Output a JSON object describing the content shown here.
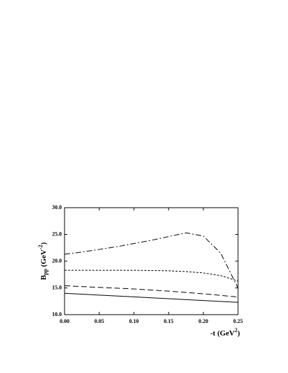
{
  "chart_data": {
    "type": "line",
    "xlabel": [
      "-t (GeV",
      "2",
      ")"
    ],
    "ylabel": [
      "B",
      "pp",
      " (GeV",
      "-2",
      ")"
    ],
    "x": [
      0,
      0.025,
      0.05,
      0.075,
      0.1,
      0.125,
      0.15,
      0.175,
      0.2,
      0.225,
      0.25
    ],
    "series": [
      {
        "dash": "solid",
        "color": "#000000",
        "values": [
          14.0,
          13.83,
          13.66,
          13.49,
          13.32,
          13.15,
          12.98,
          12.81,
          12.64,
          12.47,
          12.3
        ]
      },
      {
        "dash": "long-dash",
        "color": "#000000",
        "values": [
          15.4,
          15.25,
          15.1,
          14.95,
          14.8,
          14.6,
          14.4,
          14.15,
          13.9,
          13.6,
          13.3
        ]
      },
      {
        "dash": "short-dash",
        "color": "#000000",
        "values": [
          18.3,
          18.3,
          18.3,
          18.3,
          18.3,
          18.25,
          18.2,
          18.05,
          17.8,
          17.3,
          16.3
        ]
      },
      {
        "dash": "dash-dot",
        "color": "#000000",
        "values": [
          21.3,
          21.7,
          22.2,
          22.7,
          23.3,
          23.9,
          24.6,
          25.3,
          24.7,
          21.5,
          15.0
        ]
      }
    ],
    "xlim": [
      0,
      0.25
    ],
    "xticks": [
      {
        "value": 0,
        "label": "0.00"
      },
      0.05,
      {
        "value": 0.1,
        "label": "0.10"
      },
      0.15,
      {
        "value": 0.2,
        "label": "0.20"
      },
      0.25
    ],
    "ylim": [
      10,
      30
    ],
    "yticks": [
      {
        "value": 10,
        "label": "10.0"
      },
      {
        "value": 15,
        "label": "15.0"
      },
      {
        "value": 20,
        "label": "20.0"
      },
      {
        "value": 25,
        "label": "25.0"
      },
      {
        "value": 30,
        "label": "30.0"
      }
    ],
    "grid": false
  }
}
